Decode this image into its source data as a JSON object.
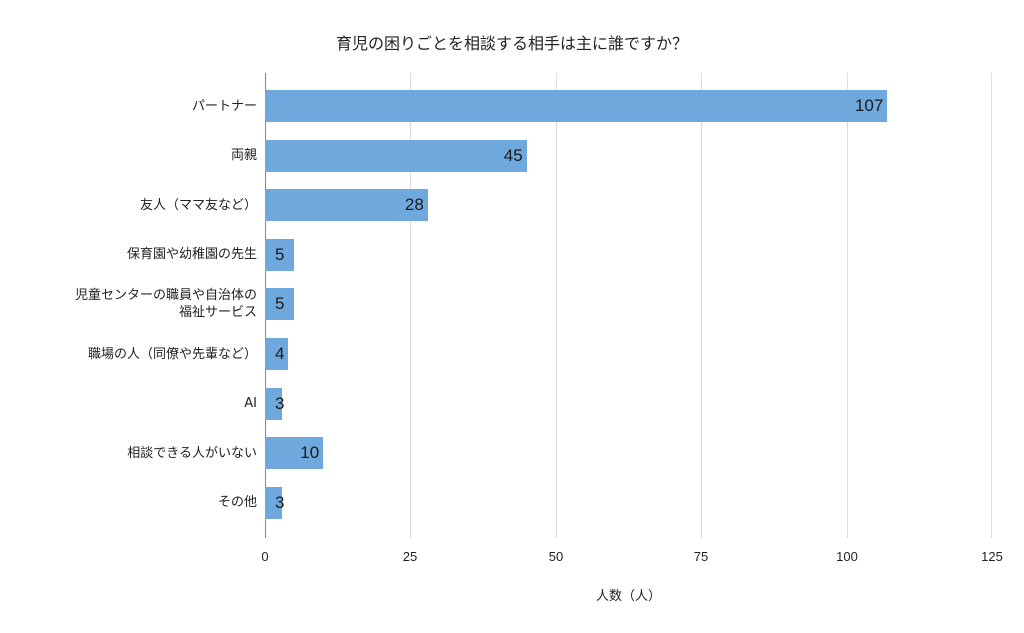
{
  "chart_data": {
    "type": "bar",
    "orientation": "horizontal",
    "title": "育児の困りごとを相談する相手は主に誰ですか？",
    "xlabel": "人数（人）",
    "ylabel": "",
    "categories": [
      "パートナー",
      "両親",
      "友人（ママ友など）",
      "保育園や幼稚園の先生",
      "児童センターの職員や自治体の福祉サービス",
      "職場の人（同僚や先輩など）",
      "AI",
      "相談できる人がいない",
      "その他"
    ],
    "category_display_lines": [
      [
        "パートナー"
      ],
      [
        "両親"
      ],
      [
        "友人（ママ友など）"
      ],
      [
        "保育園や幼稚園の先生"
      ],
      [
        "児童センターの職員や自治体の",
        "福祉サービス"
      ],
      [
        "職場の人（同僚や先輩など）"
      ],
      [
        "AI"
      ],
      [
        "相談できる人がいない"
      ],
      [
        "その他"
      ]
    ],
    "values": [
      107,
      45,
      28,
      5,
      5,
      4,
      3,
      10,
      3
    ],
    "xlim": [
      0,
      125
    ],
    "xticks": [
      "0",
      "25",
      "50",
      "75",
      "100",
      "125"
    ],
    "grid": true,
    "legend": null,
    "bar_color": "#6fa8dc",
    "data_labels": true
  }
}
